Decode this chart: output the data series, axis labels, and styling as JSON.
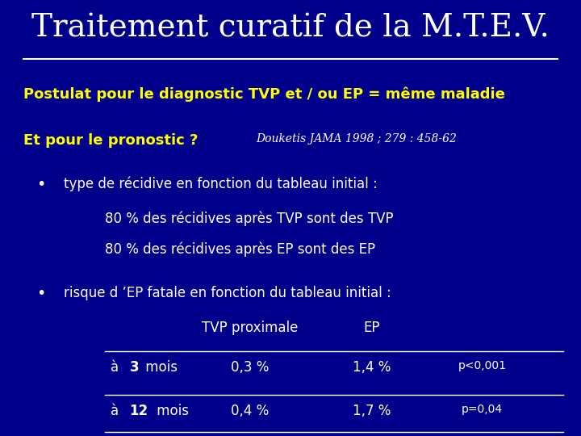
{
  "title": "Traitement curatif de la M.T.E.V.",
  "bg_color": "#00008B",
  "title_color": "#FFFFFF",
  "title_fontsize": 28,
  "yellow_color": "#FFFF00",
  "white_color": "#FFFFFF",
  "line1_bold": "Postulat pour le diagnostic TVP et / ou EP = même maladie",
  "line2_bold": "Et pour le pronostic ?",
  "line2_ref": "Douketis JAMA 1998 ; 279 : 458-62",
  "bullet1": "type de récidive en fonction du tableau initial :",
  "sub1a": "80 % des récidives après TVP sont des TVP",
  "sub1b": "80 % des récidives après EP sont des EP",
  "bullet2": "risque d ’EP fatale en fonction du tableau initial :",
  "col_header1": "TVP proximale",
  "col_header2": "EP",
  "row1_val1": "0,3 %",
  "row1_val2": "1,4 %",
  "row1_pval": "p<0,001",
  "row2_val1": "0,4 %",
  "row2_val2": "1,7 %",
  "row2_pval": "p=0,04"
}
